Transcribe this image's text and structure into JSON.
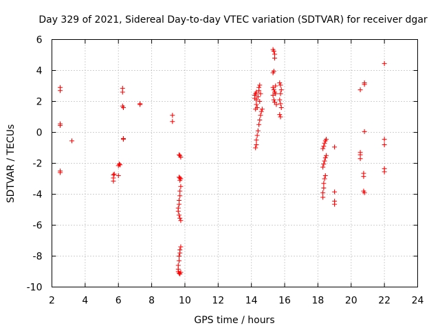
{
  "chart_data": {
    "type": "scatter",
    "title": "Day 329 of 2021, Sidereal Day-to-day VTEC variation (SDTVAR) for receiver dgar",
    "xlabel": "GPS time / hours",
    "ylabel": "SDTVAR / TECUs",
    "xlim": [
      2,
      24
    ],
    "ylim": [
      -10,
      6
    ],
    "xticks": [
      "2",
      "4",
      "6",
      "8",
      "10",
      "12",
      "14",
      "16",
      "18",
      "20",
      "22",
      "24"
    ],
    "yticks": [
      "-10",
      "-8",
      "-6",
      "-4",
      "-2",
      "0",
      "2",
      "4",
      "6"
    ],
    "grid": true,
    "marker": "+",
    "color": "#ff0000",
    "series": [
      {
        "name": "SDTVAR",
        "points": [
          [
            2.5,
            2.9
          ],
          [
            2.5,
            2.7
          ],
          [
            2.5,
            0.55
          ],
          [
            2.5,
            0.45
          ],
          [
            2.5,
            -2.5
          ],
          [
            2.5,
            -2.6
          ],
          [
            3.2,
            -0.55
          ],
          [
            5.7,
            -2.75
          ],
          [
            5.7,
            -2.95
          ],
          [
            5.7,
            -3.15
          ],
          [
            5.75,
            -2.7
          ],
          [
            6.0,
            -2.8
          ],
          [
            6.0,
            -2.15
          ],
          [
            6.05,
            -2.05
          ],
          [
            6.1,
            -2.1
          ],
          [
            6.25,
            2.85
          ],
          [
            6.25,
            2.6
          ],
          [
            6.25,
            1.7
          ],
          [
            6.3,
            1.6
          ],
          [
            6.3,
            -0.4
          ],
          [
            6.3,
            -0.45
          ],
          [
            7.3,
            1.85
          ],
          [
            7.3,
            1.8
          ],
          [
            9.25,
            1.1
          ],
          [
            9.25,
            0.7
          ],
          [
            9.65,
            -1.45
          ],
          [
            9.7,
            -1.5
          ],
          [
            9.75,
            -1.6
          ],
          [
            9.65,
            -2.9
          ],
          [
            9.7,
            -2.95
          ],
          [
            9.75,
            -3.0
          ],
          [
            9.7,
            -3.1
          ],
          [
            9.75,
            -3.5
          ],
          [
            9.7,
            -3.8
          ],
          [
            9.7,
            -4.1
          ],
          [
            9.65,
            -4.4
          ],
          [
            9.65,
            -4.65
          ],
          [
            9.6,
            -4.9
          ],
          [
            9.6,
            -5.1
          ],
          [
            9.65,
            -5.35
          ],
          [
            9.7,
            -5.55
          ],
          [
            9.75,
            -5.7
          ],
          [
            9.75,
            -7.4
          ],
          [
            9.7,
            -7.6
          ],
          [
            9.7,
            -7.8
          ],
          [
            9.65,
            -8.0
          ],
          [
            9.65,
            -8.3
          ],
          [
            9.6,
            -8.6
          ],
          [
            9.6,
            -8.85
          ],
          [
            9.6,
            -9.0
          ],
          [
            9.65,
            -9.1
          ],
          [
            9.7,
            -9.15
          ],
          [
            9.75,
            -9.05
          ],
          [
            14.25,
            -1.0
          ],
          [
            14.3,
            -0.8
          ],
          [
            14.3,
            -0.5
          ],
          [
            14.35,
            -0.2
          ],
          [
            14.4,
            0.1
          ],
          [
            14.45,
            0.5
          ],
          [
            14.5,
            0.8
          ],
          [
            14.55,
            1.1
          ],
          [
            14.6,
            1.35
          ],
          [
            14.65,
            1.5
          ],
          [
            14.2,
            2.4
          ],
          [
            14.25,
            2.5
          ],
          [
            14.3,
            2.6
          ],
          [
            14.2,
            2.2
          ],
          [
            14.3,
            2.1
          ],
          [
            14.3,
            1.8
          ],
          [
            14.25,
            1.5
          ],
          [
            14.35,
            1.6
          ],
          [
            14.4,
            2.3
          ],
          [
            14.45,
            2.7
          ],
          [
            14.45,
            2.9
          ],
          [
            14.5,
            3.05
          ],
          [
            14.55,
            2.5
          ],
          [
            14.5,
            2.0
          ],
          [
            15.3,
            5.35
          ],
          [
            15.35,
            5.25
          ],
          [
            15.4,
            5.05
          ],
          [
            15.4,
            4.8
          ],
          [
            15.35,
            3.95
          ],
          [
            15.3,
            3.85
          ],
          [
            15.3,
            2.9
          ],
          [
            15.35,
            2.75
          ],
          [
            15.4,
            2.6
          ],
          [
            15.45,
            2.5
          ],
          [
            15.35,
            2.1
          ],
          [
            15.4,
            1.95
          ],
          [
            15.5,
            1.8
          ],
          [
            15.3,
            2.4
          ],
          [
            15.45,
            3.0
          ],
          [
            15.7,
            3.2
          ],
          [
            15.75,
            3.05
          ],
          [
            15.8,
            2.75
          ],
          [
            15.75,
            2.5
          ],
          [
            15.7,
            2.1
          ],
          [
            15.75,
            1.85
          ],
          [
            15.8,
            1.6
          ],
          [
            15.7,
            1.15
          ],
          [
            15.75,
            1.0
          ],
          [
            18.3,
            -4.2
          ],
          [
            18.3,
            -3.9
          ],
          [
            18.35,
            -3.6
          ],
          [
            18.35,
            -3.3
          ],
          [
            18.4,
            -3.0
          ],
          [
            18.45,
            -2.8
          ],
          [
            18.3,
            -2.25
          ],
          [
            18.35,
            -2.05
          ],
          [
            18.4,
            -1.85
          ],
          [
            18.45,
            -1.65
          ],
          [
            18.5,
            -1.5
          ],
          [
            18.3,
            -1.05
          ],
          [
            18.35,
            -0.9
          ],
          [
            18.4,
            -0.7
          ],
          [
            18.45,
            -0.55
          ],
          [
            18.5,
            -0.45
          ],
          [
            19.0,
            -0.95
          ],
          [
            19.0,
            -3.85
          ],
          [
            19.0,
            -4.45
          ],
          [
            19.0,
            -4.65
          ],
          [
            20.55,
            2.75
          ],
          [
            20.8,
            3.1
          ],
          [
            20.8,
            3.2
          ],
          [
            20.8,
            0.05
          ],
          [
            20.55,
            -1.3
          ],
          [
            20.55,
            -1.45
          ],
          [
            20.55,
            -1.7
          ],
          [
            20.75,
            -2.65
          ],
          [
            20.75,
            -2.85
          ],
          [
            20.75,
            -3.8
          ],
          [
            20.8,
            -3.9
          ],
          [
            22.0,
            4.45
          ],
          [
            22.0,
            -0.45
          ],
          [
            22.0,
            -0.8
          ],
          [
            22.0,
            -2.35
          ],
          [
            22.0,
            -2.55
          ]
        ]
      }
    ]
  }
}
